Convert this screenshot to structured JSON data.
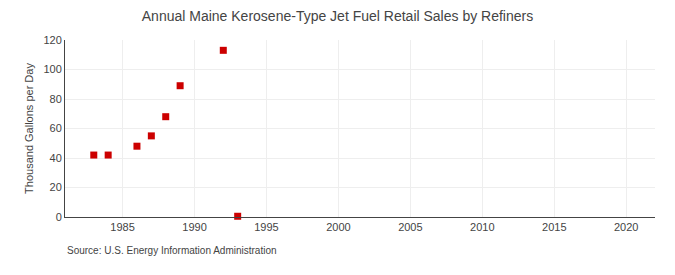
{
  "chart_data": {
    "type": "scatter",
    "title": "Annual Maine Kerosene-Type Jet Fuel Retail Sales by Refiners",
    "ylabel": "Thousand Gallons per Day",
    "annotations": [
      "Source: U.S. Energy Information Administration"
    ],
    "x": [
      1983,
      1984,
      1986,
      1987,
      1988,
      1989,
      1992,
      1993
    ],
    "values": [
      42,
      42,
      48,
      55,
      68,
      89,
      113,
      0.5
    ],
    "color": "#cc0000",
    "marker": "square",
    "xlim": [
      1981,
      2022
    ],
    "ylim": [
      0,
      120
    ],
    "xticks": [
      1985,
      1990,
      1995,
      2000,
      2005,
      2010,
      2015,
      2020
    ],
    "yticks": [
      0,
      20,
      40,
      60,
      80,
      100,
      120
    ],
    "grid": true
  }
}
